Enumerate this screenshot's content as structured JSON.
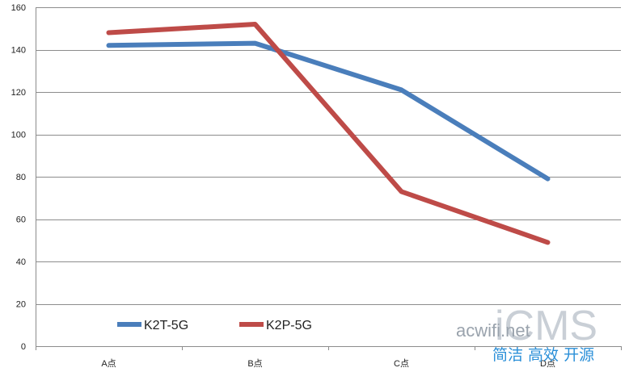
{
  "chart_data": {
    "type": "line",
    "categories": [
      "A点",
      "B点",
      "C点",
      "D点"
    ],
    "series": [
      {
        "name": "K2T-5G",
        "values": [
          142,
          143,
          121,
          79
        ],
        "color": "#4a7ebb"
      },
      {
        "name": "K2P-5G",
        "values": [
          148,
          152,
          73,
          49
        ],
        "color": "#be4b48"
      }
    ],
    "ylim": [
      0,
      160
    ],
    "yticks": [
      0,
      20,
      40,
      60,
      80,
      100,
      120,
      140,
      160
    ],
    "grid": true,
    "legend_position": "bottom-left",
    "title": "",
    "xlabel": "",
    "ylabel": ""
  },
  "watermark": {
    "logo": "iCMS",
    "site": "acwifi.net",
    "slogan": "简洁 高效 开源"
  }
}
